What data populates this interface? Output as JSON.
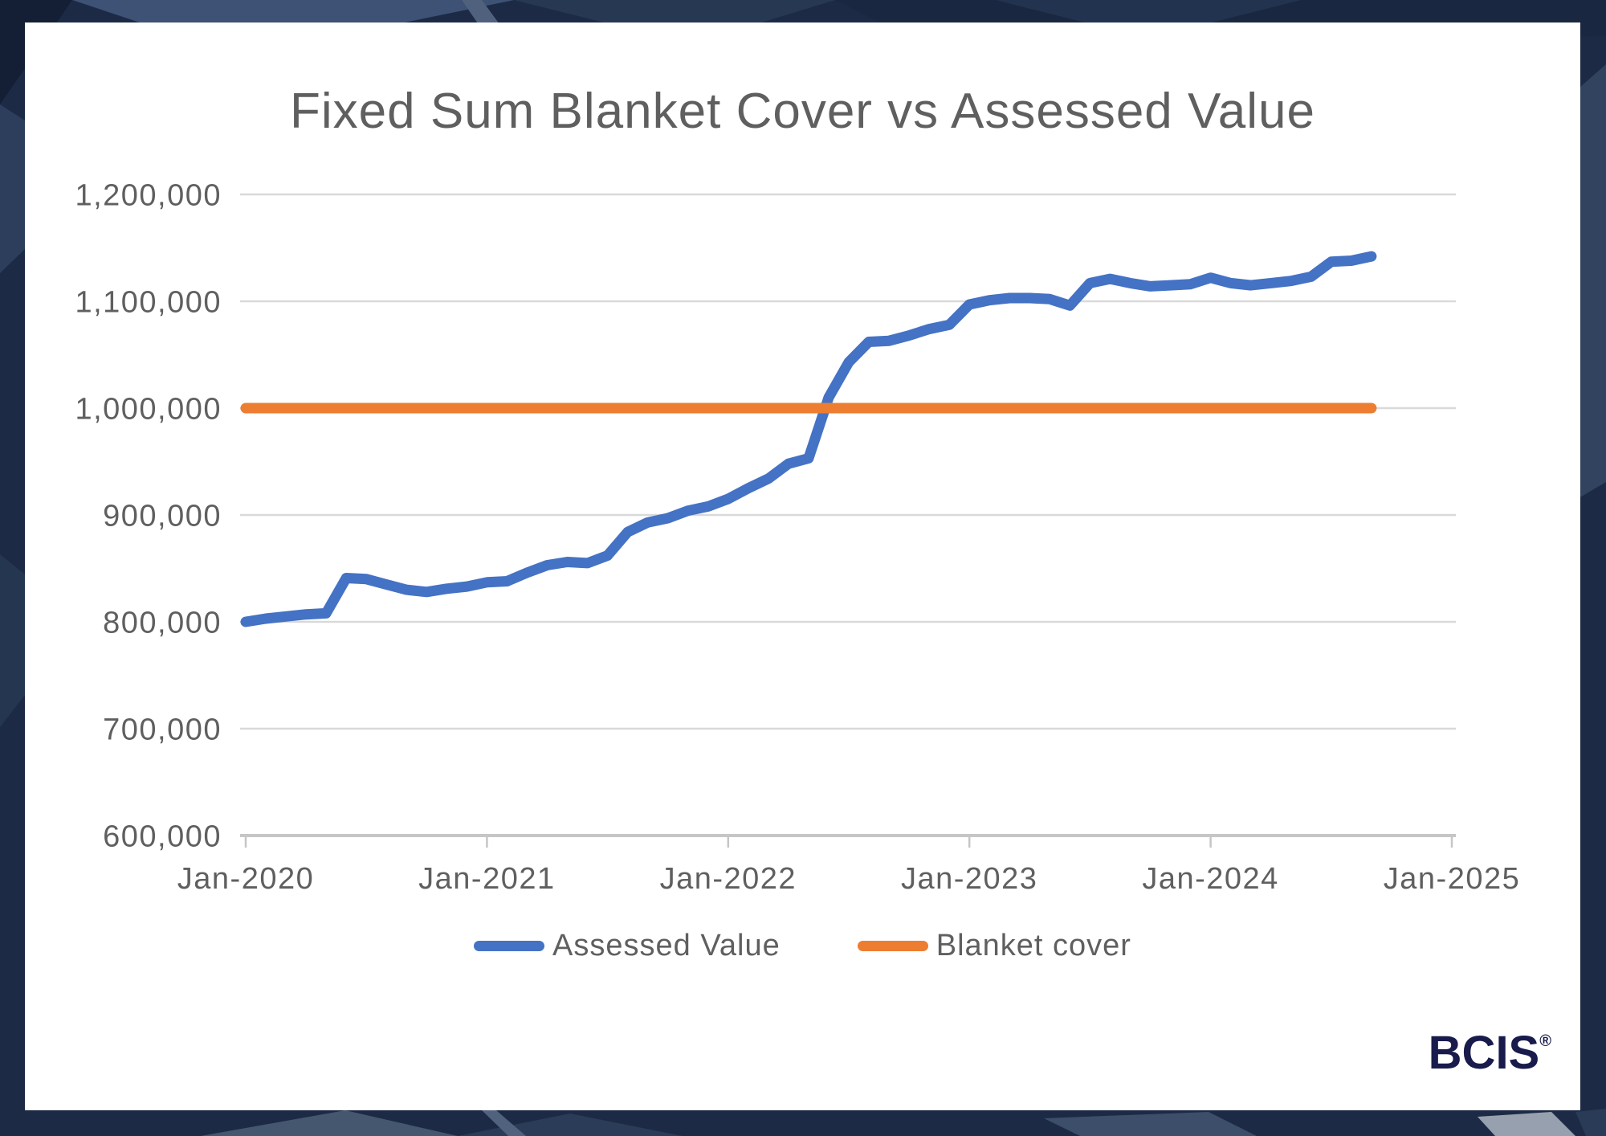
{
  "chart_data": {
    "type": "line",
    "title": "Fixed Sum Blanket Cover vs Assessed Value",
    "grid": "horizontal",
    "legend_position": "bottom",
    "x_axis": {
      "unit": "month",
      "months_span": 60,
      "ticks": [
        {
          "month_index": 0,
          "label": "Jan-2020"
        },
        {
          "month_index": 12,
          "label": "Jan-2021"
        },
        {
          "month_index": 24,
          "label": "Jan-2022"
        },
        {
          "month_index": 36,
          "label": "Jan-2023"
        },
        {
          "month_index": 48,
          "label": "Jan-2024"
        },
        {
          "month_index": 60,
          "label": "Jan-2025"
        }
      ]
    },
    "y_axis": {
      "min": 600000,
      "max": 1200000,
      "tick_step": 100000,
      "ticks": [
        {
          "value": 1200000,
          "label": "1,200,000"
        },
        {
          "value": 1100000,
          "label": "1,100,000"
        },
        {
          "value": 1000000,
          "label": "1,000,000"
        },
        {
          "value": 900000,
          "label": "900,000"
        },
        {
          "value": 800000,
          "label": "800,000"
        },
        {
          "value": 700000,
          "label": "700,000"
        },
        {
          "value": 600000,
          "label": "600,000"
        }
      ]
    },
    "series": [
      {
        "name": "Assessed Value",
        "color": "#4472C4",
        "start_month_index": 0,
        "values": [
          800000,
          803000,
          805000,
          807000,
          808000,
          841000,
          840000,
          835000,
          830000,
          828000,
          831000,
          833000,
          837000,
          838000,
          846000,
          853000,
          856000,
          855000,
          862000,
          884000,
          893000,
          897000,
          904000,
          908000,
          915000,
          925000,
          934000,
          948000,
          953000,
          1010000,
          1043000,
          1062000,
          1063000,
          1068000,
          1074000,
          1078000,
          1097000,
          1101000,
          1103000,
          1103000,
          1102000,
          1096000,
          1117000,
          1121000,
          1117000,
          1114000,
          1115000,
          1116000,
          1122000,
          1117000,
          1115000,
          1117000,
          1119000,
          1123000,
          1137000,
          1138000,
          1142000
        ]
      },
      {
        "name": "Blanket cover",
        "color": "#ED7D31",
        "start_month_index": 0,
        "end_month_index": 56,
        "constant_value": 1000000
      }
    ]
  },
  "colors": {
    "card_background": "#ffffff",
    "border_background": "#1c2a45",
    "gridline": "#d9d9d9",
    "axis_line": "#c6c6c6",
    "text": "#5f5f5f",
    "logo": "#181b4b"
  },
  "logo": {
    "text": "BCIS",
    "registered_mark": "®"
  }
}
